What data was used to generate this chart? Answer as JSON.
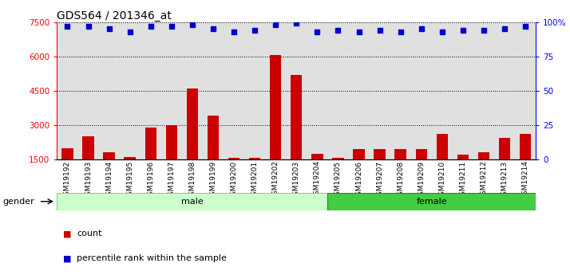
{
  "title": "GDS564 / 201346_at",
  "samples": [
    "GSM19192",
    "GSM19193",
    "GSM19194",
    "GSM19195",
    "GSM19196",
    "GSM19197",
    "GSM19198",
    "GSM19199",
    "GSM19200",
    "GSM19201",
    "GSM19202",
    "GSM19203",
    "GSM19204",
    "GSM19205",
    "GSM19206",
    "GSM19207",
    "GSM19208",
    "GSM19209",
    "GSM19210",
    "GSM19211",
    "GSM19212",
    "GSM19213",
    "GSM19214"
  ],
  "counts": [
    2000,
    2500,
    1800,
    1600,
    2900,
    3000,
    4600,
    3400,
    1560,
    1560,
    6050,
    5200,
    1750,
    1580,
    1950,
    1950,
    1950,
    1950,
    2600,
    1700,
    1800,
    2450,
    2600
  ],
  "percentile_ranks": [
    97,
    97,
    95,
    93,
    97,
    97,
    98,
    95,
    93,
    94,
    98,
    99,
    93,
    94,
    93,
    94,
    93,
    95,
    93,
    94,
    94,
    95,
    97
  ],
  "gender_groups": [
    {
      "label": "male",
      "start": 0,
      "end": 13,
      "color": "#ccffcc",
      "edge": "#88cc88"
    },
    {
      "label": "female",
      "start": 13,
      "end": 23,
      "color": "#44cc44",
      "edge": "#228822"
    }
  ],
  "bar_color": "#cc0000",
  "dot_color": "#0000cc",
  "ylim_left": [
    1500,
    7500
  ],
  "ylim_right": [
    0,
    100
  ],
  "yticks_left": [
    1500,
    3000,
    4500,
    6000,
    7500
  ],
  "yticks_right": [
    0,
    25,
    50,
    75,
    100
  ],
  "grid_values": [
    3000,
    4500,
    6000,
    7500
  ],
  "background_color": "#e0e0e0",
  "bar_width": 0.55
}
